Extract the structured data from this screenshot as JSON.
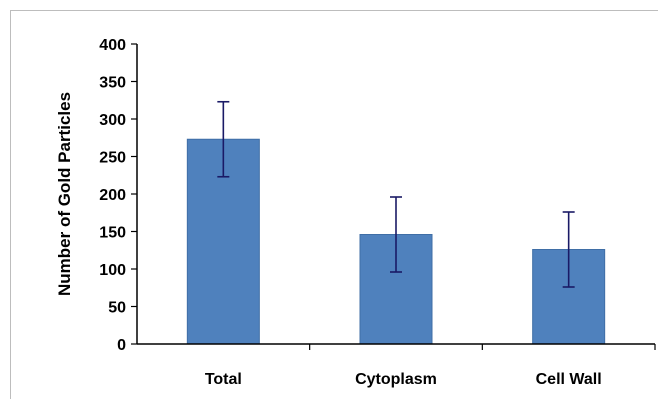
{
  "chart_data": {
    "type": "bar",
    "categories": [
      "Total",
      "Cytoplasm",
      "Cell Wall"
    ],
    "values": [
      273,
      146,
      126
    ],
    "error": [
      50,
      50,
      50
    ],
    "title": "",
    "xlabel": "",
    "ylabel": "Number of Gold Particles",
    "ylim": [
      0,
      400
    ],
    "yticks": [
      0,
      50,
      100,
      150,
      200,
      250,
      300,
      350,
      400
    ],
    "grid": false,
    "legend": "none",
    "colors": {
      "bar": "#4f81bd",
      "bar_edge": "#3f6ea6",
      "error_bar": "#1a1a66",
      "axis": "#000000"
    }
  }
}
